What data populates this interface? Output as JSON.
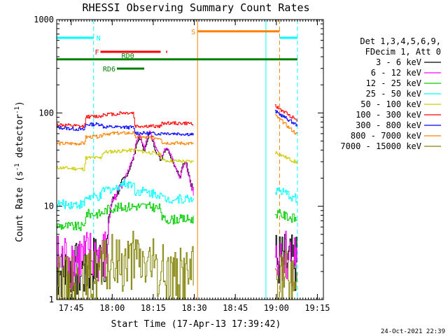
{
  "chart_data": {
    "type": "line",
    "title": "RHESSI Observing Summary Count Rates",
    "xlabel": "Start Time (17-Apr-13 17:39:42)",
    "ylabel_main": "Count Rate (s",
    "ylabel_sup1": "-1",
    "ylabel_mid": " detector",
    "ylabel_sup2": "-1",
    "ylabel_end": ")",
    "x_unit": "minutes since 17:39:42",
    "xlim": [
      0,
      97.5
    ],
    "ylim": [
      1,
      1000
    ],
    "yscale": "log",
    "x_ticks": [
      {
        "x": 5.3,
        "label": "17:45"
      },
      {
        "x": 20.3,
        "label": "18:00"
      },
      {
        "x": 35.3,
        "label": "18:15"
      },
      {
        "x": 50.3,
        "label": "18:30"
      },
      {
        "x": 65.3,
        "label": "18:45"
      },
      {
        "x": 80.3,
        "label": "19:00"
      },
      {
        "x": 95.3,
        "label": "19:15"
      }
    ],
    "y_ticks": [
      {
        "y": 1,
        "label": "1"
      },
      {
        "y": 10,
        "label": "10"
      },
      {
        "y": 100,
        "label": "100"
      },
      {
        "y": 1000,
        "label": "1000"
      }
    ],
    "legend_header": [
      "Det 1,3,4,5,6,9,",
      "FDecim 1, Att 0"
    ],
    "legend_position": "right",
    "series": [
      {
        "name": "3 - 6 keV",
        "color": "#000000",
        "segments": [
          [
            [
              0,
              2.0
            ],
            [
              10,
              2.0
            ],
            [
              14,
              2.5
            ],
            [
              17,
              2.7
            ],
            [
              18.3,
              3.5
            ],
            [
              19,
              8
            ],
            [
              20,
              11
            ],
            [
              22,
              14
            ],
            [
              24,
              18
            ],
            [
              26,
              23
            ],
            [
              28,
              33
            ],
            [
              29,
              45
            ],
            [
              30,
              55
            ],
            [
              31,
              48
            ],
            [
              32,
              38
            ],
            [
              33,
              52
            ],
            [
              34,
              62
            ],
            [
              35,
              50
            ],
            [
              36,
              40
            ],
            [
              37,
              35
            ],
            [
              38,
              31
            ],
            [
              39,
              38
            ],
            [
              40,
              42
            ],
            [
              41,
              38
            ],
            [
              42,
              32
            ],
            [
              43,
              27
            ],
            [
              44,
              24
            ],
            [
              45,
              20
            ],
            [
              46,
              28
            ],
            [
              47,
              31
            ],
            [
              48,
              24
            ],
            [
              49,
              18
            ],
            [
              50,
              15
            ]
          ],
          [
            [
              79.8,
              2.7
            ],
            [
              88,
              2.3
            ]
          ]
        ]
      },
      {
        "name": "6 - 12 keV",
        "color": "#ff00ff",
        "segments": [
          [
            [
              0,
              2.6
            ],
            [
              10,
              2.7
            ],
            [
              14,
              2.8
            ],
            [
              17,
              2.8
            ],
            [
              18.3,
              3.0
            ],
            [
              19,
              7
            ],
            [
              20,
              11
            ],
            [
              22,
              14
            ],
            [
              24,
              18
            ],
            [
              26,
              24
            ],
            [
              28,
              35
            ],
            [
              29,
              48
            ],
            [
              30,
              58
            ],
            [
              31,
              50
            ],
            [
              32,
              40
            ],
            [
              33,
              55
            ],
            [
              34,
              63
            ],
            [
              35,
              52
            ],
            [
              36,
              44
            ],
            [
              37,
              38
            ],
            [
              38,
              33
            ],
            [
              39,
              38
            ],
            [
              40,
              43
            ],
            [
              41,
              40
            ],
            [
              42,
              33
            ],
            [
              43,
              27
            ],
            [
              44,
              23
            ],
            [
              45,
              20
            ],
            [
              46,
              26
            ],
            [
              47,
              30
            ],
            [
              48,
              22
            ],
            [
              49,
              17
            ],
            [
              50,
              14
            ]
          ],
          [
            [
              79.8,
              3.2
            ],
            [
              88,
              2.8
            ]
          ]
        ]
      },
      {
        "name": "12 - 25 keV",
        "color": "#00cc00",
        "segments": [
          [
            [
              0,
              6.2
            ],
            [
              10,
              6.0
            ],
            [
              10.5,
              8.3
            ],
            [
              16,
              8.3
            ],
            [
              19,
              9.5
            ],
            [
              28,
              10
            ],
            [
              33,
              10
            ],
            [
              38,
              9.5
            ],
            [
              38.5,
              7.2
            ],
            [
              50,
              7.3
            ]
          ],
          [
            [
              79.8,
              8.5
            ],
            [
              88,
              7.2
            ]
          ]
        ]
      },
      {
        "name": "25 - 50 keV",
        "color": "#00ffff",
        "segments": [
          [
            [
              0,
              10.5
            ],
            [
              10,
              10.5
            ],
            [
              10.5,
              12.5
            ],
            [
              16,
              12.5
            ],
            [
              17,
              15
            ],
            [
              22,
              15.5
            ],
            [
              23,
              17.5
            ],
            [
              28,
              17.5
            ],
            [
              28.5,
              14.5
            ],
            [
              32,
              14.5
            ],
            [
              33,
              14
            ],
            [
              38,
              13.5
            ],
            [
              38.5,
              12
            ],
            [
              50,
              12
            ]
          ],
          [
            [
              79.8,
              15
            ],
            [
              88,
              12
            ]
          ]
        ]
      },
      {
        "name": "50 - 100 keV",
        "color": "#cccc00",
        "segments": [
          [
            [
              0,
              26
            ],
            [
              10,
              25
            ],
            [
              10.5,
              33
            ],
            [
              16,
              33
            ],
            [
              17,
              38
            ],
            [
              28,
              40
            ],
            [
              33,
              38
            ],
            [
              38,
              36
            ],
            [
              38.5,
              31
            ],
            [
              50,
              30
            ]
          ],
          [
            [
              79.8,
              38
            ],
            [
              88,
              29
            ]
          ]
        ]
      },
      {
        "name": "100 - 300 keV",
        "color": "#ff0000",
        "segments": [
          [
            [
              0,
              75
            ],
            [
              10,
              71
            ],
            [
              10.5,
              91
            ],
            [
              16,
              92
            ],
            [
              17,
              97
            ],
            [
              22,
              97
            ],
            [
              23,
              100
            ],
            [
              28,
              100
            ],
            [
              28.5,
              72
            ],
            [
              38,
              72
            ],
            [
              38.5,
              78
            ],
            [
              50,
              77
            ]
          ],
          [
            [
              79.8,
              118
            ],
            [
              88,
              83
            ]
          ]
        ]
      },
      {
        "name": "300 - 800 keV",
        "color": "#0000ff",
        "segments": [
          [
            [
              0,
              70
            ],
            [
              10,
              66
            ],
            [
              10.5,
              75
            ],
            [
              16,
              76
            ],
            [
              17,
              71
            ],
            [
              28,
              70
            ],
            [
              28.5,
              61
            ],
            [
              38,
              60
            ],
            [
              38.5,
              61
            ],
            [
              50,
              59
            ]
          ],
          [
            [
              79.8,
              104
            ],
            [
              88,
              73
            ]
          ]
        ]
      },
      {
        "name": "800 - 7000 keV",
        "color": "#ff8000",
        "segments": [
          [
            [
              0,
              47
            ],
            [
              10,
              47
            ],
            [
              10.5,
              55
            ],
            [
              16,
              56
            ],
            [
              17,
              60
            ],
            [
              28,
              61
            ],
            [
              28.5,
              55
            ],
            [
              38,
              54
            ],
            [
              38.5,
              48
            ],
            [
              50,
              47
            ]
          ],
          [
            [
              79.8,
              94
            ],
            [
              88,
              58
            ]
          ]
        ]
      },
      {
        "name": "7000 - 15000 keV",
        "color": "#808000",
        "segments": [
          [
            [
              0,
              1.45
            ],
            [
              10,
              1.5
            ],
            [
              16,
              2.0
            ],
            [
              20,
              2.4
            ],
            [
              28,
              2.6
            ],
            [
              33,
              2.4
            ],
            [
              38,
              1.9
            ],
            [
              44,
              1.8
            ],
            [
              50,
              1.9
            ]
          ],
          [
            [
              79.8,
              1.8
            ],
            [
              88,
              1.5
            ]
          ]
        ]
      }
    ],
    "flag_lines": [
      {
        "label": "N",
        "color": "#00ffff",
        "y_frac": 0.065,
        "segments": [
          [
            0,
            13.5
          ],
          [
            81.5,
            88
          ]
        ]
      },
      {
        "label": "F",
        "color": "#ff0000",
        "y_frac": 0.115,
        "segments": [
          [
            16,
            38
          ],
          [
            40,
            40.4
          ]
        ]
      },
      {
        "label": "S",
        "color": "#ff8000",
        "y_frac": 0.042,
        "segments": [
          [
            51.5,
            81.5
          ]
        ]
      },
      {
        "label": "RD0",
        "color": "#008000",
        "y_frac": 0.142,
        "segments": [
          [
            0,
            88
          ]
        ]
      },
      {
        "label": "RD6",
        "color": "#008000",
        "y_frac": 0.175,
        "segments": [
          [
            22,
            32
          ]
        ]
      }
    ],
    "vertical_lines": [
      {
        "x": 0,
        "color": "#00ffff",
        "style": "solid"
      },
      {
        "x": 13.5,
        "color": "#00ffff",
        "style": "dashed"
      },
      {
        "x": 51.5,
        "color": "#ff8000",
        "style": "solid"
      },
      {
        "x": 76.5,
        "color": "#00ffff",
        "style": "solid"
      },
      {
        "x": 81.5,
        "color": "#ff8000",
        "style": "dashed"
      },
      {
        "x": 88,
        "color": "#00ffff",
        "style": "dashed"
      }
    ]
  },
  "footer": {
    "timestamp": "24-Oct-2021 22:39"
  }
}
